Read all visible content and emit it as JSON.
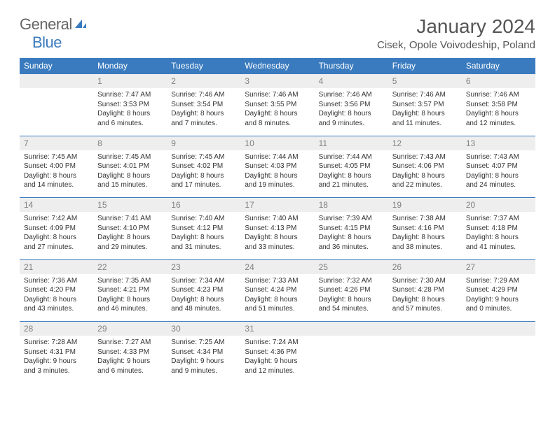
{
  "logo": {
    "general": "General",
    "blue": "Blue"
  },
  "title": "January 2024",
  "location": "Cisek, Opole Voivodeship, Poland",
  "colors": {
    "header_bg": "#3a7bbf",
    "header_text": "#ffffff",
    "daynum_bg": "#eeeeee",
    "daynum_text": "#808080",
    "row_divider": "#3a7bbf",
    "body_text": "#333333",
    "page_bg": "#ffffff"
  },
  "weekdays": [
    "Sunday",
    "Monday",
    "Tuesday",
    "Wednesday",
    "Thursday",
    "Friday",
    "Saturday"
  ],
  "weeks": [
    [
      {
        "n": "",
        "sr": "",
        "ss": "",
        "dl": ""
      },
      {
        "n": "1",
        "sr": "Sunrise: 7:47 AM",
        "ss": "Sunset: 3:53 PM",
        "dl": "Daylight: 8 hours and 6 minutes."
      },
      {
        "n": "2",
        "sr": "Sunrise: 7:46 AM",
        "ss": "Sunset: 3:54 PM",
        "dl": "Daylight: 8 hours and 7 minutes."
      },
      {
        "n": "3",
        "sr": "Sunrise: 7:46 AM",
        "ss": "Sunset: 3:55 PM",
        "dl": "Daylight: 8 hours and 8 minutes."
      },
      {
        "n": "4",
        "sr": "Sunrise: 7:46 AM",
        "ss": "Sunset: 3:56 PM",
        "dl": "Daylight: 8 hours and 9 minutes."
      },
      {
        "n": "5",
        "sr": "Sunrise: 7:46 AM",
        "ss": "Sunset: 3:57 PM",
        "dl": "Daylight: 8 hours and 11 minutes."
      },
      {
        "n": "6",
        "sr": "Sunrise: 7:46 AM",
        "ss": "Sunset: 3:58 PM",
        "dl": "Daylight: 8 hours and 12 minutes."
      }
    ],
    [
      {
        "n": "7",
        "sr": "Sunrise: 7:45 AM",
        "ss": "Sunset: 4:00 PM",
        "dl": "Daylight: 8 hours and 14 minutes."
      },
      {
        "n": "8",
        "sr": "Sunrise: 7:45 AM",
        "ss": "Sunset: 4:01 PM",
        "dl": "Daylight: 8 hours and 15 minutes."
      },
      {
        "n": "9",
        "sr": "Sunrise: 7:45 AM",
        "ss": "Sunset: 4:02 PM",
        "dl": "Daylight: 8 hours and 17 minutes."
      },
      {
        "n": "10",
        "sr": "Sunrise: 7:44 AM",
        "ss": "Sunset: 4:03 PM",
        "dl": "Daylight: 8 hours and 19 minutes."
      },
      {
        "n": "11",
        "sr": "Sunrise: 7:44 AM",
        "ss": "Sunset: 4:05 PM",
        "dl": "Daylight: 8 hours and 21 minutes."
      },
      {
        "n": "12",
        "sr": "Sunrise: 7:43 AM",
        "ss": "Sunset: 4:06 PM",
        "dl": "Daylight: 8 hours and 22 minutes."
      },
      {
        "n": "13",
        "sr": "Sunrise: 7:43 AM",
        "ss": "Sunset: 4:07 PM",
        "dl": "Daylight: 8 hours and 24 minutes."
      }
    ],
    [
      {
        "n": "14",
        "sr": "Sunrise: 7:42 AM",
        "ss": "Sunset: 4:09 PM",
        "dl": "Daylight: 8 hours and 27 minutes."
      },
      {
        "n": "15",
        "sr": "Sunrise: 7:41 AM",
        "ss": "Sunset: 4:10 PM",
        "dl": "Daylight: 8 hours and 29 minutes."
      },
      {
        "n": "16",
        "sr": "Sunrise: 7:40 AM",
        "ss": "Sunset: 4:12 PM",
        "dl": "Daylight: 8 hours and 31 minutes."
      },
      {
        "n": "17",
        "sr": "Sunrise: 7:40 AM",
        "ss": "Sunset: 4:13 PM",
        "dl": "Daylight: 8 hours and 33 minutes."
      },
      {
        "n": "18",
        "sr": "Sunrise: 7:39 AM",
        "ss": "Sunset: 4:15 PM",
        "dl": "Daylight: 8 hours and 36 minutes."
      },
      {
        "n": "19",
        "sr": "Sunrise: 7:38 AM",
        "ss": "Sunset: 4:16 PM",
        "dl": "Daylight: 8 hours and 38 minutes."
      },
      {
        "n": "20",
        "sr": "Sunrise: 7:37 AM",
        "ss": "Sunset: 4:18 PM",
        "dl": "Daylight: 8 hours and 41 minutes."
      }
    ],
    [
      {
        "n": "21",
        "sr": "Sunrise: 7:36 AM",
        "ss": "Sunset: 4:20 PM",
        "dl": "Daylight: 8 hours and 43 minutes."
      },
      {
        "n": "22",
        "sr": "Sunrise: 7:35 AM",
        "ss": "Sunset: 4:21 PM",
        "dl": "Daylight: 8 hours and 46 minutes."
      },
      {
        "n": "23",
        "sr": "Sunrise: 7:34 AM",
        "ss": "Sunset: 4:23 PM",
        "dl": "Daylight: 8 hours and 48 minutes."
      },
      {
        "n": "24",
        "sr": "Sunrise: 7:33 AM",
        "ss": "Sunset: 4:24 PM",
        "dl": "Daylight: 8 hours and 51 minutes."
      },
      {
        "n": "25",
        "sr": "Sunrise: 7:32 AM",
        "ss": "Sunset: 4:26 PM",
        "dl": "Daylight: 8 hours and 54 minutes."
      },
      {
        "n": "26",
        "sr": "Sunrise: 7:30 AM",
        "ss": "Sunset: 4:28 PM",
        "dl": "Daylight: 8 hours and 57 minutes."
      },
      {
        "n": "27",
        "sr": "Sunrise: 7:29 AM",
        "ss": "Sunset: 4:29 PM",
        "dl": "Daylight: 9 hours and 0 minutes."
      }
    ],
    [
      {
        "n": "28",
        "sr": "Sunrise: 7:28 AM",
        "ss": "Sunset: 4:31 PM",
        "dl": "Daylight: 9 hours and 3 minutes."
      },
      {
        "n": "29",
        "sr": "Sunrise: 7:27 AM",
        "ss": "Sunset: 4:33 PM",
        "dl": "Daylight: 9 hours and 6 minutes."
      },
      {
        "n": "30",
        "sr": "Sunrise: 7:25 AM",
        "ss": "Sunset: 4:34 PM",
        "dl": "Daylight: 9 hours and 9 minutes."
      },
      {
        "n": "31",
        "sr": "Sunrise: 7:24 AM",
        "ss": "Sunset: 4:36 PM",
        "dl": "Daylight: 9 hours and 12 minutes."
      },
      {
        "n": "",
        "sr": "",
        "ss": "",
        "dl": ""
      },
      {
        "n": "",
        "sr": "",
        "ss": "",
        "dl": ""
      },
      {
        "n": "",
        "sr": "",
        "ss": "",
        "dl": ""
      }
    ]
  ]
}
